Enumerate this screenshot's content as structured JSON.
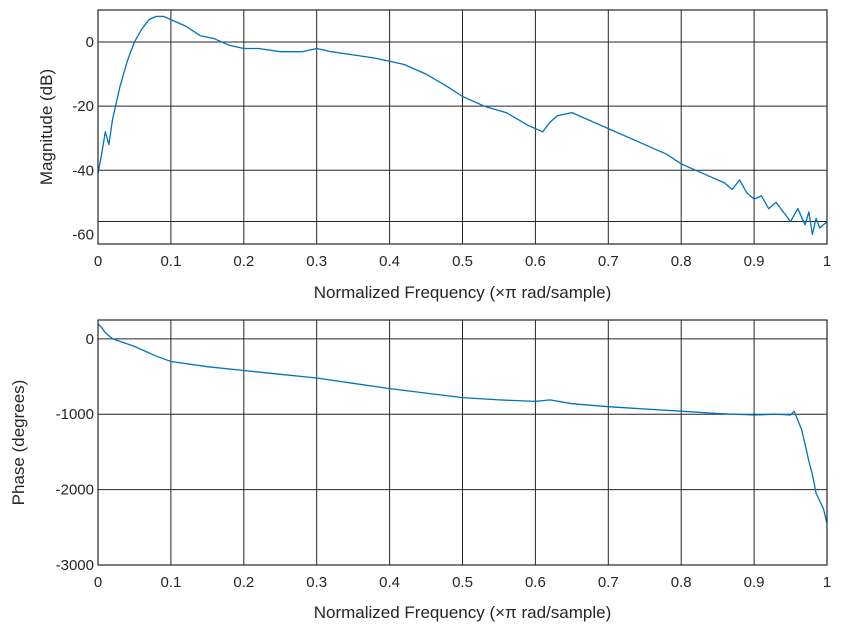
{
  "chart_data": [
    {
      "type": "line",
      "xlabel": "Normalized Frequency  (×π rad/sample)",
      "ylabel": "Magnitude (dB)",
      "xlim": [
        0,
        1
      ],
      "ylim": [
        -63,
        10
      ],
      "x_ticks": [
        "0",
        "0.1",
        "0.2",
        "0.3",
        "0.4",
        "0.5",
        "0.6",
        "0.7",
        "0.8",
        "0.9",
        "1"
      ],
      "y_ticks": [
        "0",
        "-20",
        "-40",
        "-60"
      ],
      "y_tick_values": [
        0,
        -20,
        -40,
        -60
      ],
      "grid_y_values": [
        0,
        -20,
        -40,
        -56
      ],
      "grid": true,
      "series": [
        {
          "color": "#0072BD",
          "x": [
            0,
            0.005,
            0.01,
            0.015,
            0.02,
            0.03,
            0.04,
            0.05,
            0.06,
            0.07,
            0.08,
            0.09,
            0.1,
            0.12,
            0.14,
            0.16,
            0.18,
            0.2,
            0.22,
            0.25,
            0.28,
            0.3,
            0.32,
            0.35,
            0.38,
            0.4,
            0.42,
            0.45,
            0.48,
            0.5,
            0.53,
            0.56,
            0.59,
            0.61,
            0.62,
            0.63,
            0.65,
            0.67,
            0.7,
            0.73,
            0.76,
            0.78,
            0.8,
            0.82,
            0.84,
            0.86,
            0.87,
            0.88,
            0.89,
            0.9,
            0.91,
            0.92,
            0.93,
            0.94,
            0.95,
            0.96,
            0.97,
            0.975,
            0.98,
            0.985,
            0.99,
            1.0
          ],
          "y": [
            -41,
            -35,
            -28,
            -32,
            -24,
            -14,
            -6,
            0,
            4,
            7,
            8,
            8,
            7,
            5,
            2,
            1,
            -1,
            -2,
            -2,
            -3,
            -3,
            -2,
            -3,
            -4,
            -5,
            -6,
            -7,
            -10,
            -14,
            -17,
            -20,
            -22,
            -26,
            -28,
            -25,
            -23,
            -22,
            -24,
            -27,
            -30,
            -33,
            -35,
            -38,
            -40,
            -42,
            -44,
            -46,
            -43,
            -47,
            -49,
            -48,
            -52,
            -50,
            -53,
            -56,
            -52,
            -57,
            -53,
            -60,
            -55,
            -58,
            -56
          ]
        }
      ]
    },
    {
      "type": "line",
      "xlabel": "Normalized Frequency  (×π rad/sample)",
      "ylabel": "Phase (degrees)",
      "xlim": [
        0,
        1
      ],
      "ylim": [
        -3000,
        250
      ],
      "x_ticks": [
        "0",
        "0.1",
        "0.2",
        "0.3",
        "0.4",
        "0.5",
        "0.6",
        "0.7",
        "0.8",
        "0.9",
        "1"
      ],
      "y_ticks": [
        "0",
        "-1000",
        "-2000",
        "-3000"
      ],
      "y_tick_values": [
        0,
        -1000,
        -2000,
        -3000
      ],
      "grid_y_values": [
        0,
        -1000,
        -2000
      ],
      "grid": true,
      "series": [
        {
          "color": "#0072BD",
          "x": [
            0,
            0.005,
            0.01,
            0.02,
            0.05,
            0.08,
            0.1,
            0.15,
            0.2,
            0.25,
            0.3,
            0.35,
            0.4,
            0.45,
            0.5,
            0.55,
            0.6,
            0.62,
            0.65,
            0.7,
            0.75,
            0.8,
            0.85,
            0.9,
            0.93,
            0.95,
            0.955,
            0.96,
            0.965,
            0.97,
            0.975,
            0.98,
            0.985,
            0.99,
            0.995,
            1.0
          ],
          "y": [
            200,
            150,
            80,
            0,
            -100,
            -230,
            -300,
            -370,
            -420,
            -470,
            -520,
            -590,
            -660,
            -720,
            -780,
            -810,
            -830,
            -810,
            -860,
            -900,
            -930,
            -960,
            -990,
            -1010,
            -1000,
            -1010,
            -960,
            -1080,
            -1200,
            -1400,
            -1620,
            -1800,
            -2050,
            -2150,
            -2250,
            -2450
          ]
        }
      ]
    }
  ]
}
